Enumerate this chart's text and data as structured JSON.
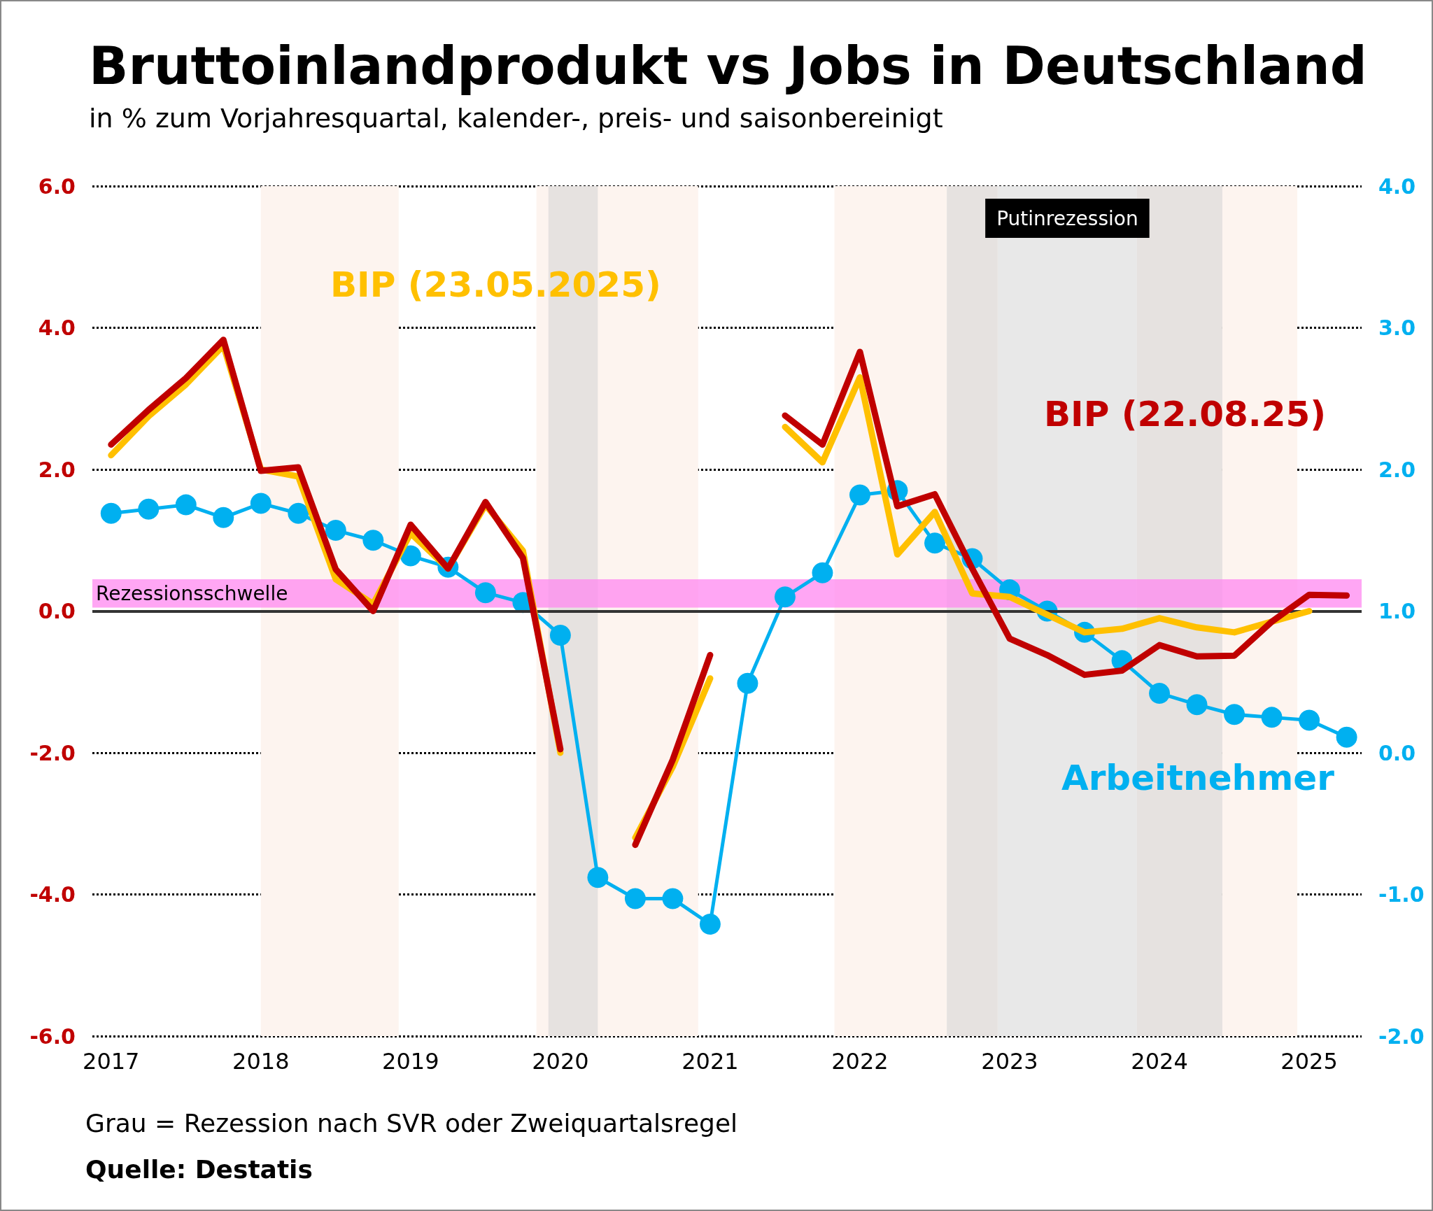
{
  "chart_data": {
    "type": "line",
    "title": "Bruttoinlandprodukt vs Jobs in Deutschland",
    "subtitle": "in % zum Vorjahresquartal, kalender-, preis- und saisonbereinigt",
    "annotations": [
      "Grau = Rezession nach SVR oder Zweiquartalsregel",
      "Quelle: Destatis"
    ],
    "x": [
      2017,
      2017.25,
      2017.5,
      2017.75,
      2018,
      2018.25,
      2018.5,
      2018.75,
      2019,
      2019.25,
      2019.5,
      2019.75,
      2020,
      2020.25,
      2020.5,
      2020.75,
      2021,
      2021.25,
      2021.5,
      2021.75,
      2022,
      2022.25,
      2022.5,
      2022.75,
      2023,
      2023.25,
      2023.5,
      2023.75,
      2024,
      2024.25,
      2024.5,
      2024.75,
      2025,
      2025.25
    ],
    "series": [
      {
        "name": "BIP (23.05.2025)",
        "color": "#ffc000",
        "marker": "none",
        "values": [
          2.2,
          2.75,
          3.2,
          3.75,
          2.0,
          1.9,
          0.45,
          0.1,
          1.1,
          0.6,
          1.5,
          0.85,
          -2.0,
          null,
          -3.2,
          -2.2,
          -0.95,
          null,
          2.6,
          2.1,
          3.3,
          0.8,
          1.4,
          0.25,
          0.2,
          -0.05,
          -0.3,
          -0.25,
          -0.1,
          -0.23,
          -0.3,
          -0.15,
          0.0,
          null
        ]
      },
      {
        "name": "BIP (22.08.25)",
        "color": "#c00000",
        "marker": "none",
        "values": [
          2.35,
          2.84,
          3.29,
          3.83,
          1.98,
          2.03,
          0.59,
          0.0,
          1.22,
          0.6,
          1.54,
          0.75,
          -1.95,
          null,
          -3.3,
          -2.1,
          -0.62,
          null,
          2.76,
          2.35,
          3.66,
          1.48,
          1.65,
          0.6,
          -0.39,
          -0.62,
          -0.9,
          -0.84,
          -0.48,
          -0.64,
          -0.63,
          -0.15,
          0.23,
          0.22
        ]
      },
      {
        "name": "Arbeitnehmer",
        "color": "#00b0f0",
        "marker": "circle",
        "axis": "y2",
        "values": [
          1.69,
          1.72,
          1.75,
          1.66,
          1.76,
          1.69,
          1.57,
          1.5,
          1.39,
          1.31,
          1.13,
          1.06,
          0.83,
          -0.88,
          -1.03,
          -1.03,
          -1.21,
          0.49,
          1.1,
          1.27,
          1.82,
          1.85,
          1.48,
          1.37,
          1.15,
          1.0,
          0.85,
          0.65,
          0.42,
          0.34,
          0.27,
          0.25,
          0.23,
          0.11
        ]
      }
    ],
    "xlim": [
      2016.875,
      2025.35
    ],
    "xticks": [
      2017,
      2018,
      2019,
      2020,
      2021,
      2022,
      2023,
      2024,
      2025
    ],
    "ylim": [
      -6,
      6
    ],
    "yticks": [
      {
        "value": -6,
        "label": "-6.0"
      },
      {
        "value": -4,
        "label": "-4.0"
      },
      {
        "value": -2,
        "label": "-2.0"
      },
      {
        "value": 0,
        "label": "0.0"
      },
      {
        "value": 2,
        "label": "2.0"
      },
      {
        "value": 4,
        "label": "4.0"
      },
      {
        "value": 6,
        "label": "6.0"
      }
    ],
    "y2lim": [
      -2,
      4
    ],
    "y2ticks": [
      {
        "value": -2,
        "label": "-2.0"
      },
      {
        "value": -1,
        "label": "-1.0"
      },
      {
        "value": 0,
        "label": "0.0"
      },
      {
        "value": 1,
        "label": "1.0"
      },
      {
        "value": 2,
        "label": "2.0"
      },
      {
        "value": 3,
        "label": "3.0"
      },
      {
        "value": 4,
        "label": "4.0"
      }
    ],
    "bands": [
      {
        "axis": "x",
        "from": 2018.0,
        "to": 2018.92,
        "color": "#fdf4ef"
      },
      {
        "axis": "x",
        "from": 2019.84,
        "to": 2020.92,
        "color": "#fdf4ef"
      },
      {
        "axis": "x",
        "from": 2021.83,
        "to": 2022.58,
        "color": "#fdf4ef"
      },
      {
        "axis": "x",
        "from": 2024.42,
        "to": 2024.92,
        "color": "#fdf4ef"
      },
      {
        "axis": "x",
        "from": 2019.92,
        "to": 2020.25,
        "color": "#e6e2e0"
      },
      {
        "axis": "x",
        "from": 2022.58,
        "to": 2022.92,
        "color": "#e6e2e0"
      },
      {
        "axis": "x",
        "from": 2022.92,
        "to": 2023.85,
        "color": "#e8e8e8",
        "label": "Putinrezession"
      },
      {
        "axis": "x",
        "from": 2023.85,
        "to": 2024.42,
        "color": "#e6e2e0"
      },
      {
        "axis": "y",
        "from": 0.05,
        "to": 0.45,
        "color": "#ff88f0",
        "label": "Rezessionsschwelle"
      }
    ],
    "ref_lines": [
      {
        "axis": "y",
        "value": 0,
        "color": "#333333",
        "line_style": "solid"
      }
    ],
    "grid": "y",
    "legend": false,
    "line_style": "solid"
  }
}
